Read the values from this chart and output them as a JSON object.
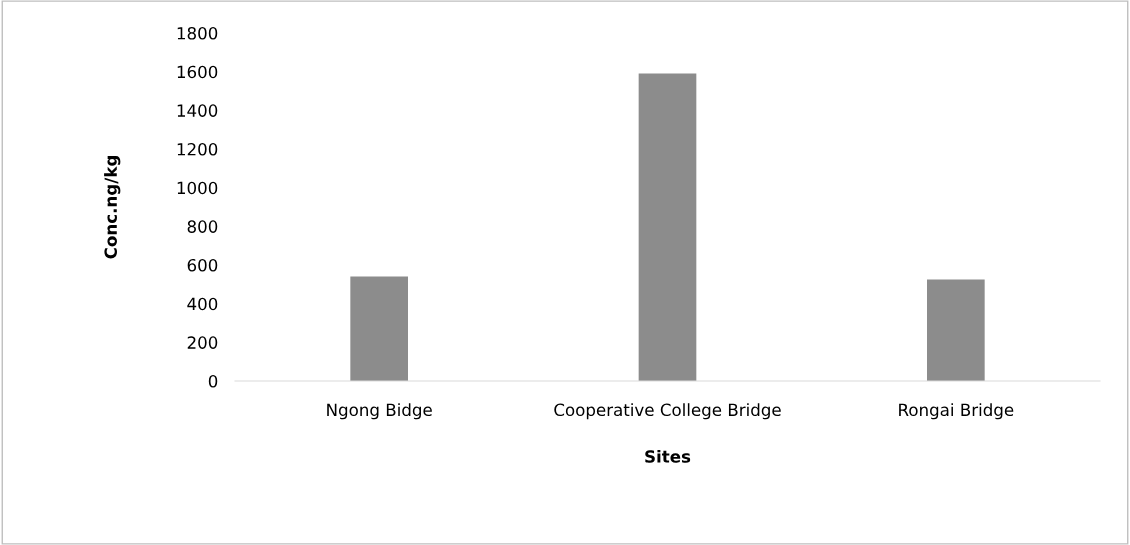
{
  "chart_data": {
    "type": "bar",
    "xlabel": "Sites",
    "ylabel": "Conc.ng/kg",
    "categories": [
      "Ngong Bidge",
      "Cooperative College Bridge",
      "Rongai Bridge"
    ],
    "values": [
      540,
      1590,
      525
    ],
    "color": "#8c8c8c",
    "ylim": [
      0,
      1800
    ],
    "yticks": [
      0,
      200,
      400,
      600,
      800,
      1000,
      1200,
      1400,
      1600,
      1800
    ],
    "grid": false
  }
}
